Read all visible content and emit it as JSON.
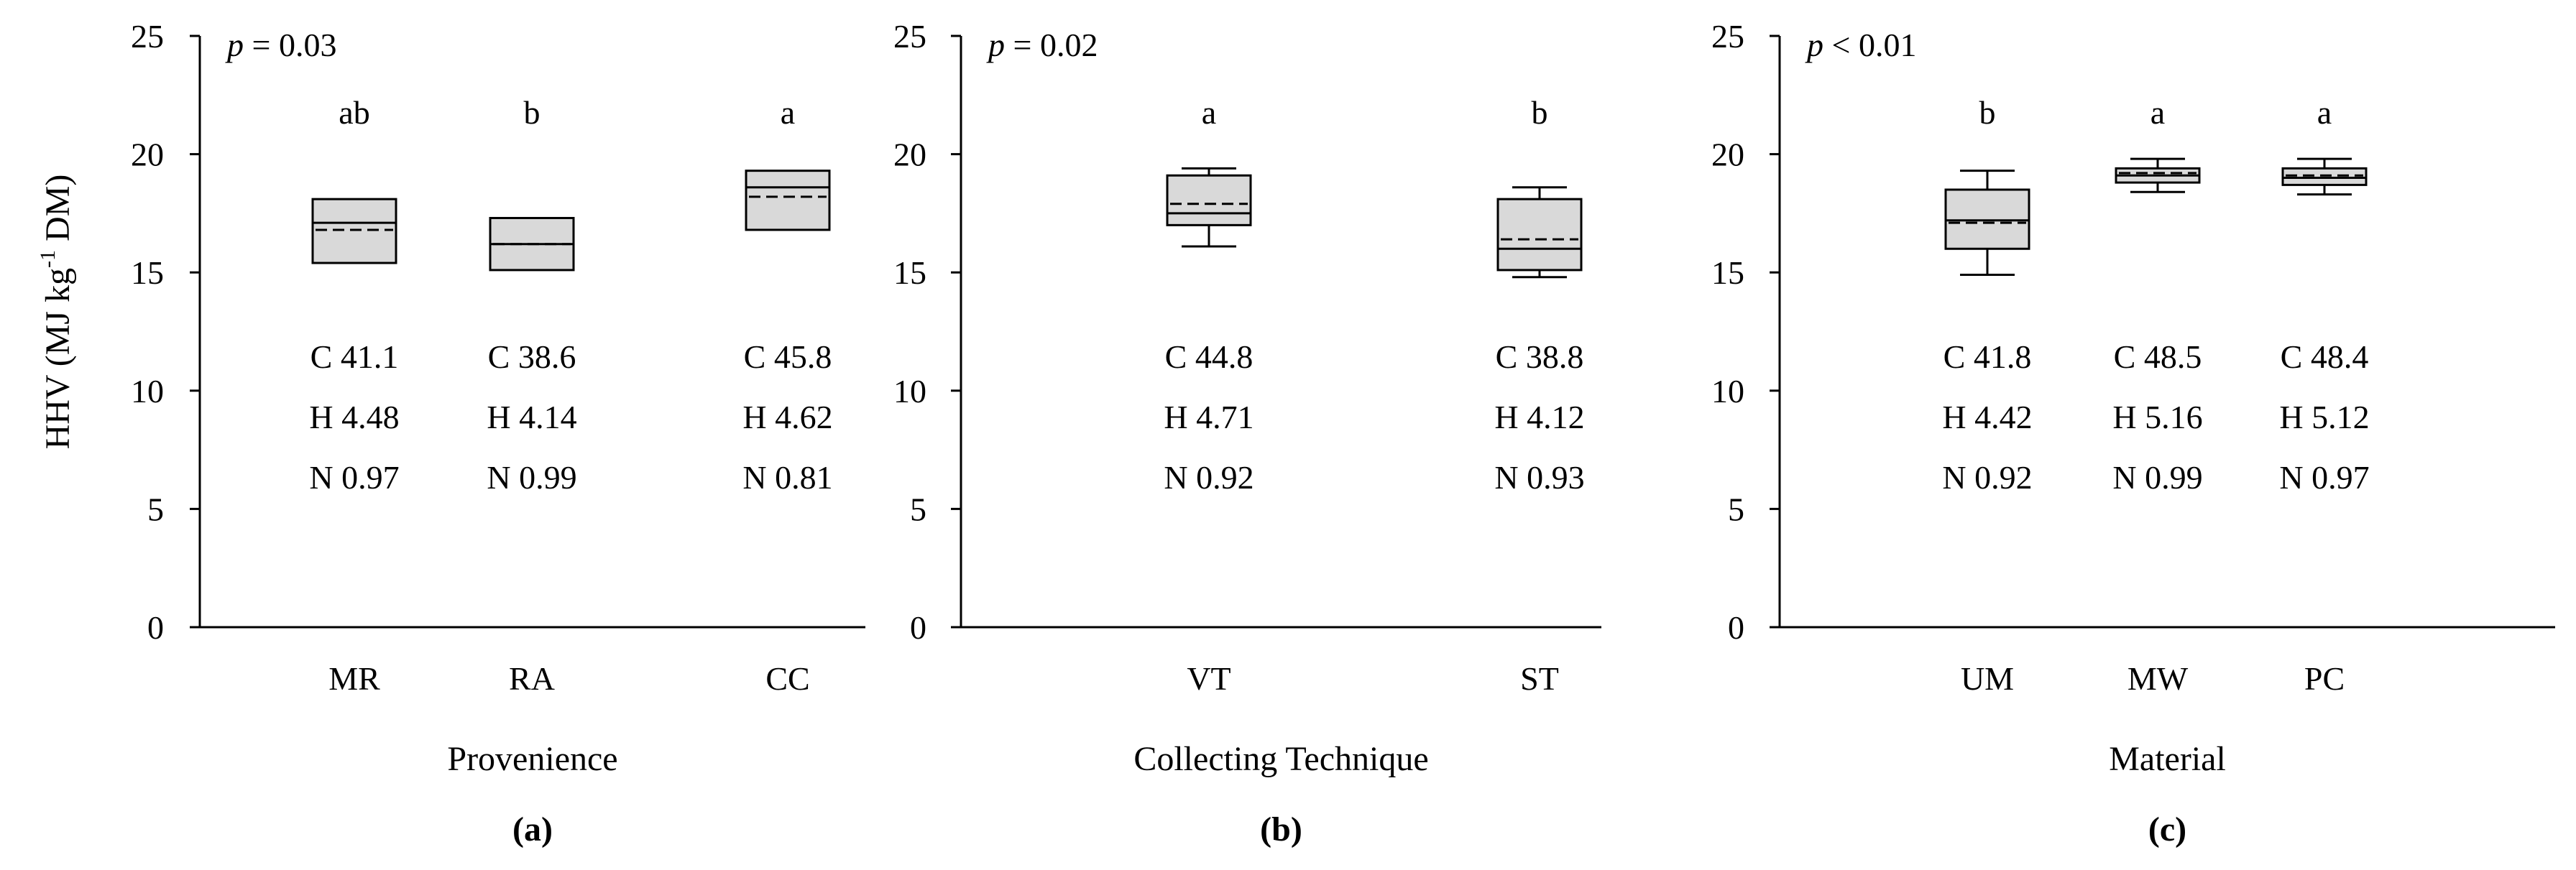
{
  "figure": {
    "ylabel_main": "HHV (MJ kg",
    "ylabel_sup": "-1",
    "ylabel_tail": " DM)"
  },
  "chart_data": [
    {
      "type": "box",
      "panel_label": "(a)",
      "xlabel": "Provenience",
      "p_prefix": "p",
      "p_text": " = 0.03",
      "ylim": [
        0,
        25
      ],
      "yticks": [
        0,
        5,
        10,
        15,
        20,
        25
      ],
      "categories": [
        "MR",
        "RA",
        "CC"
      ],
      "letters": [
        "ab",
        "b",
        "a"
      ],
      "boxes": [
        {
          "min": 15.4,
          "q1": 15.4,
          "median": 17.1,
          "mean": 16.8,
          "q3": 18.1,
          "max": 18.1
        },
        {
          "min": 15.1,
          "q1": 15.1,
          "median": 16.2,
          "mean": 16.2,
          "q3": 17.3,
          "max": 17.3
        },
        {
          "min": 16.8,
          "q1": 16.8,
          "median": 18.6,
          "mean": 18.2,
          "q3": 19.3,
          "max": 19.3
        }
      ],
      "annotations": [
        [
          "C 41.1",
          "H 4.48",
          "N 0.97"
        ],
        [
          "C 38.6",
          "H 4.14",
          "N 0.99"
        ],
        [
          "C 45.8",
          "H 4.62",
          "N 0.81"
        ]
      ]
    },
    {
      "type": "box",
      "panel_label": "(b)",
      "xlabel": "Collecting Technique",
      "p_prefix": "p",
      "p_text": " = 0.02",
      "ylim": [
        0,
        25
      ],
      "yticks": [
        0,
        5,
        10,
        15,
        20,
        25
      ],
      "categories": [
        "VT",
        "ST"
      ],
      "letters": [
        "a",
        "b"
      ],
      "boxes": [
        {
          "min": 16.1,
          "q1": 17.0,
          "median": 17.5,
          "mean": 17.9,
          "q3": 19.1,
          "max": 19.4
        },
        {
          "min": 14.8,
          "q1": 15.1,
          "median": 16.0,
          "mean": 16.4,
          "q3": 18.1,
          "max": 18.6
        }
      ],
      "annotations": [
        [
          "C 44.8",
          "H 4.71",
          "N 0.92"
        ],
        [
          "C 38.8",
          "H 4.12",
          "N 0.93"
        ]
      ]
    },
    {
      "type": "box",
      "panel_label": "(c)",
      "xlabel": "Material",
      "p_prefix": "p",
      "p_text": " < 0.01",
      "ylim": [
        0,
        25
      ],
      "yticks": [
        0,
        5,
        10,
        15,
        20,
        25
      ],
      "categories": [
        "UM",
        "MW",
        "PC"
      ],
      "letters": [
        "b",
        "a",
        "a"
      ],
      "boxes": [
        {
          "min": 14.9,
          "q1": 16.0,
          "median": 17.2,
          "mean": 17.1,
          "q3": 18.5,
          "max": 19.3
        },
        {
          "min": 18.4,
          "q1": 18.8,
          "median": 19.1,
          "mean": 19.2,
          "q3": 19.4,
          "max": 19.8
        },
        {
          "min": 18.3,
          "q1": 18.7,
          "median": 19.0,
          "mean": 19.1,
          "q3": 19.4,
          "max": 19.8
        }
      ],
      "annotations": [
        [
          "C 41.8",
          "H 4.42",
          "N 0.92"
        ],
        [
          "C 48.5",
          "H 5.16",
          "N 0.99"
        ],
        [
          "C 48.4",
          "H 5.12",
          "N 0.97"
        ]
      ]
    }
  ]
}
